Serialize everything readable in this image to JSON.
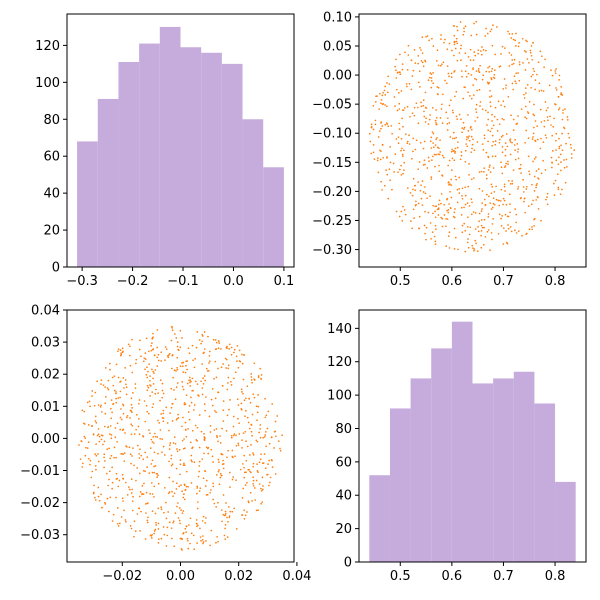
{
  "colors": {
    "hist": "#c5acdc",
    "scatter": "#ff7f0e",
    "frame": "#000000",
    "background": "#ffffff"
  },
  "chart_data": [
    {
      "name": "top-left-histogram",
      "type": "bar",
      "bin_edges": [
        -0.31,
        -0.269,
        -0.228,
        -0.187,
        -0.146,
        -0.105,
        -0.064,
        -0.023,
        0.018,
        0.059,
        0.1
      ],
      "values": [
        68,
        91,
        111,
        121,
        130,
        119,
        116,
        110,
        80,
        54
      ],
      "xlim": [
        -0.33,
        0.12
      ],
      "ylim": [
        0,
        137
      ],
      "xticks": [
        -0.3,
        -0.2,
        -0.1,
        0.0,
        0.1
      ],
      "xtick_labels": [
        "−0.3",
        "−0.2",
        "−0.1",
        "0.0",
        "0.1"
      ],
      "yticks": [
        0,
        20,
        40,
        60,
        80,
        100,
        120
      ],
      "ytick_labels": [
        "0",
        "20",
        "40",
        "60",
        "80",
        "100",
        "120"
      ]
    },
    {
      "name": "top-right-scatter",
      "type": "scatter",
      "center": [
        0.64,
        -0.105
      ],
      "radius": [
        0.2,
        0.2
      ],
      "n_points": 1000,
      "xlim": [
        0.42,
        0.86
      ],
      "ylim": [
        -0.33,
        0.105
      ],
      "xticks": [
        0.5,
        0.6,
        0.7,
        0.8
      ],
      "xtick_labels": [
        "0.5",
        "0.6",
        "0.7",
        "0.8"
      ],
      "yticks": [
        -0.3,
        -0.25,
        -0.2,
        -0.15,
        -0.1,
        -0.05,
        0.0,
        0.05,
        0.1
      ],
      "ytick_labels": [
        "−0.30",
        "−0.25",
        "−0.20",
        "−0.15",
        "−0.10",
        "−0.05",
        "0.00",
        "0.05",
        "0.10"
      ]
    },
    {
      "name": "bottom-left-scatter",
      "type": "scatter",
      "center": [
        0.0,
        0.0
      ],
      "radius": [
        0.035,
        0.035
      ],
      "n_points": 1000,
      "xlim": [
        -0.039,
        0.039
      ],
      "ylim": [
        -0.0385,
        0.04
      ],
      "xticks": [
        -0.02,
        0.0,
        0.02,
        0.04
      ],
      "xtick_labels": [
        "−0.02",
        "0.00",
        "0.02",
        "0.04"
      ],
      "yticks": [
        -0.03,
        -0.02,
        -0.01,
        0.0,
        0.01,
        0.02,
        0.03,
        0.04
      ],
      "ytick_labels": [
        "−0.03",
        "−0.02",
        "−0.01",
        "0.00",
        "0.01",
        "0.02",
        "0.03",
        "0.04"
      ]
    },
    {
      "name": "bottom-right-histogram",
      "type": "bar",
      "bin_edges": [
        0.44,
        0.48,
        0.52,
        0.56,
        0.6,
        0.64,
        0.68,
        0.72,
        0.76,
        0.8,
        0.84
      ],
      "values": [
        52,
        92,
        110,
        128,
        144,
        107,
        110,
        114,
        95,
        48
      ],
      "xlim": [
        0.42,
        0.86
      ],
      "ylim": [
        0,
        151
      ],
      "xticks": [
        0.5,
        0.6,
        0.7,
        0.8
      ],
      "xtick_labels": [
        "0.5",
        "0.6",
        "0.7",
        "0.8"
      ],
      "yticks": [
        0,
        20,
        40,
        60,
        80,
        100,
        120,
        140
      ],
      "ytick_labels": [
        "0",
        "20",
        "40",
        "60",
        "80",
        "100",
        "120",
        "140"
      ]
    }
  ]
}
